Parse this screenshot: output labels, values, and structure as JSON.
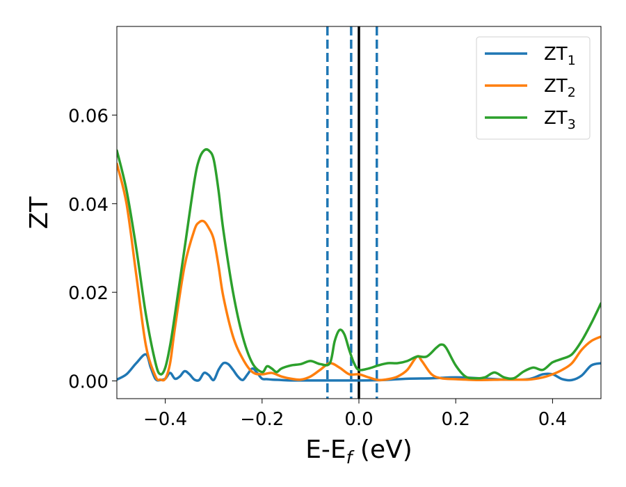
{
  "chart_data": {
    "type": "line",
    "xlabel": "E-E",
    "xlabel_sub": "f",
    "xlabel_unit": " (eV)",
    "ylabel": "ZT",
    "xlim": [
      -0.5,
      0.5
    ],
    "ylim": [
      -0.004,
      0.08
    ],
    "xticks": [
      -0.4,
      -0.2,
      0.0,
      0.2,
      0.4
    ],
    "xtick_labels": [
      "−0.4",
      "−0.2",
      "0.0",
      "0.2",
      "0.4"
    ],
    "yticks": [
      0.0,
      0.02,
      0.04,
      0.06
    ],
    "ytick_labels": [
      "0.00",
      "0.02",
      "0.04",
      "0.06"
    ],
    "grid": false,
    "legend_position": "top-right",
    "vertical_lines": [
      {
        "x": -0.065,
        "style": "dashed",
        "color": "#1f77b4"
      },
      {
        "x": -0.016,
        "style": "dashed",
        "color": "#1f77b4"
      },
      {
        "x": 0.037,
        "style": "dashed",
        "color": "#1f77b4"
      },
      {
        "x": 0.0,
        "style": "solid",
        "color": "#000000"
      }
    ],
    "series": [
      {
        "name": "ZT",
        "sub": "1",
        "color": "#1f77b4",
        "x": [
          -0.5,
          -0.48,
          -0.46,
          -0.44,
          -0.43,
          -0.42,
          -0.41,
          -0.4,
          -0.39,
          -0.38,
          -0.37,
          -0.36,
          -0.35,
          -0.34,
          -0.33,
          -0.32,
          -0.31,
          -0.3,
          -0.29,
          -0.28,
          -0.27,
          -0.26,
          -0.25,
          -0.24,
          -0.23,
          -0.22,
          -0.21,
          -0.2,
          -0.19,
          -0.18,
          -0.16,
          -0.14,
          -0.1,
          -0.05,
          0.0,
          0.05,
          0.1,
          0.15,
          0.2,
          0.25,
          0.3,
          0.35,
          0.38,
          0.4,
          0.42,
          0.44,
          0.46,
          0.48,
          0.5
        ],
        "y": [
          0.0003,
          0.0015,
          0.004,
          0.006,
          0.003,
          0.0004,
          0.0002,
          0.0005,
          0.0018,
          0.0005,
          0.001,
          0.0022,
          0.0015,
          0.0003,
          0.0002,
          0.0018,
          0.0013,
          0.0002,
          0.0025,
          0.004,
          0.0038,
          0.0025,
          0.001,
          0.0002,
          0.0015,
          0.0028,
          0.0018,
          0.0005,
          0.0004,
          0.0003,
          0.0002,
          0.0001,
          0.0001,
          0.0001,
          0.0001,
          0.0002,
          0.0005,
          0.0006,
          0.0008,
          0.0006,
          0.0003,
          0.0004,
          0.0015,
          0.0015,
          0.0004,
          0.0002,
          0.0012,
          0.0035,
          0.004
        ]
      },
      {
        "name": "ZT",
        "sub": "2",
        "color": "#ff7f0e",
        "x": [
          -0.5,
          -0.48,
          -0.46,
          -0.44,
          -0.42,
          -0.41,
          -0.4,
          -0.39,
          -0.38,
          -0.36,
          -0.34,
          -0.33,
          -0.32,
          -0.31,
          -0.3,
          -0.29,
          -0.28,
          -0.26,
          -0.24,
          -0.22,
          -0.2,
          -0.18,
          -0.16,
          -0.14,
          -0.12,
          -0.1,
          -0.08,
          -0.06,
          -0.04,
          -0.02,
          0.0,
          0.02,
          0.04,
          0.06,
          0.08,
          0.1,
          0.12,
          0.13,
          0.15,
          0.17,
          0.2,
          0.25,
          0.3,
          0.35,
          0.38,
          0.4,
          0.42,
          0.44,
          0.46,
          0.48,
          0.5
        ],
        "y": [
          0.049,
          0.04,
          0.024,
          0.008,
          0.001,
          0.0003,
          0.0005,
          0.004,
          0.012,
          0.026,
          0.034,
          0.0358,
          0.036,
          0.0345,
          0.032,
          0.026,
          0.019,
          0.01,
          0.005,
          0.002,
          0.0015,
          0.0018,
          0.001,
          0.0005,
          0.0003,
          0.001,
          0.0025,
          0.004,
          0.003,
          0.0015,
          0.0015,
          0.0008,
          0.0002,
          0.0004,
          0.001,
          0.0025,
          0.0055,
          0.0045,
          0.0015,
          0.0006,
          0.0004,
          0.0002,
          0.0003,
          0.0003,
          0.0008,
          0.0015,
          0.0025,
          0.004,
          0.007,
          0.009,
          0.01
        ]
      },
      {
        "name": "ZT",
        "sub": "3",
        "color": "#2ca02c",
        "x": [
          -0.5,
          -0.48,
          -0.46,
          -0.44,
          -0.42,
          -0.41,
          -0.4,
          -0.39,
          -0.38,
          -0.36,
          -0.34,
          -0.33,
          -0.32,
          -0.31,
          -0.3,
          -0.29,
          -0.28,
          -0.26,
          -0.24,
          -0.22,
          -0.2,
          -0.19,
          -0.18,
          -0.17,
          -0.16,
          -0.14,
          -0.12,
          -0.1,
          -0.08,
          -0.06,
          -0.05,
          -0.04,
          -0.03,
          -0.02,
          -0.01,
          0.0,
          0.02,
          0.04,
          0.06,
          0.08,
          0.1,
          0.12,
          0.14,
          0.16,
          0.17,
          0.18,
          0.2,
          0.22,
          0.24,
          0.26,
          0.28,
          0.3,
          0.32,
          0.34,
          0.36,
          0.38,
          0.4,
          0.42,
          0.44,
          0.46,
          0.48,
          0.5
        ],
        "y": [
          0.052,
          0.043,
          0.03,
          0.015,
          0.004,
          0.0015,
          0.003,
          0.008,
          0.015,
          0.03,
          0.045,
          0.05,
          0.052,
          0.052,
          0.05,
          0.043,
          0.034,
          0.02,
          0.01,
          0.004,
          0.002,
          0.0033,
          0.0028,
          0.002,
          0.0028,
          0.0035,
          0.0038,
          0.0045,
          0.0038,
          0.004,
          0.009,
          0.0115,
          0.0105,
          0.007,
          0.004,
          0.0025,
          0.0028,
          0.0035,
          0.004,
          0.004,
          0.0045,
          0.0055,
          0.0055,
          0.0075,
          0.0082,
          0.0075,
          0.0035,
          0.001,
          0.0006,
          0.0008,
          0.0019,
          0.0008,
          0.0006,
          0.0021,
          0.003,
          0.0025,
          0.0042,
          0.005,
          0.006,
          0.009,
          0.013,
          0.0175
        ]
      }
    ]
  }
}
